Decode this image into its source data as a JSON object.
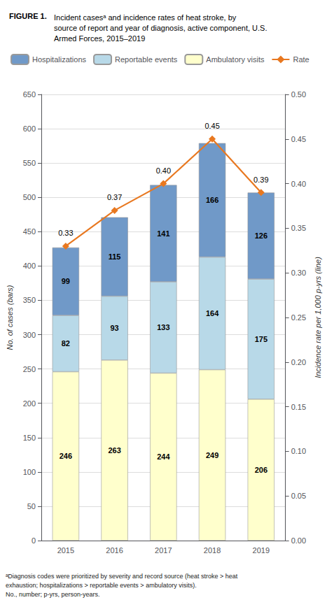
{
  "chart_data": {
    "type": "bar",
    "title": "FIGURE 1.",
    "subtitle": "Incident casesᵃ and incidence rates of heat stroke, by\nsource of report and year of diagnosis, active component, U.S.\nArmed Forces, 2015–2019",
    "annotations": [
      "ᵃDiagnosis codes were prioritized by severity and record source (heat stroke > heat\nexhaustion; hospitalizations > reportable events > ambulatory visits).\nNo., number; p-yrs, person-years."
    ],
    "categories": [
      "2015",
      "2016",
      "2017",
      "2018",
      "2019"
    ],
    "series": [
      {
        "name": "Ambulatory visits",
        "color": "#ffffcc",
        "values": [
          246,
          263,
          244,
          249,
          206
        ]
      },
      {
        "name": "Reportable events",
        "color": "#b8d9e8",
        "values": [
          82,
          93,
          133,
          164,
          175
        ]
      },
      {
        "name": "Hospitalizations",
        "color": "#7099c8",
        "values": [
          99,
          115,
          141,
          166,
          126
        ]
      },
      {
        "name": "Rate",
        "type": "line",
        "axis": "y2",
        "color": "#e87820",
        "marker": "diamond",
        "values": [
          0.33,
          0.37,
          0.4,
          0.45,
          0.39
        ],
        "value_labels": [
          "0.33",
          "0.37",
          "0.40",
          "0.45",
          "0.39"
        ]
      }
    ],
    "stacked": true,
    "data_labels": true,
    "ylabel": "No. of cases (bars)",
    "y2label": "Incidence rate per 1,000 p-yrs (line)",
    "ylim": [
      0,
      650
    ],
    "yticks": [
      0,
      50,
      100,
      150,
      200,
      250,
      300,
      350,
      400,
      450,
      500,
      550,
      600,
      650
    ],
    "y2lim": [
      0.0,
      0.5
    ],
    "y2ticks": [
      {
        "value": 0.0,
        "label": "0.00"
      },
      {
        "value": 0.05,
        "label": "0.05"
      },
      {
        "value": 0.1,
        "label": "0.10"
      },
      {
        "value": 0.15,
        "label": "0.15"
      },
      {
        "value": 0.2,
        "label": "0.20"
      },
      {
        "value": 0.25,
        "label": "0.25"
      },
      {
        "value": 0.3,
        "label": "0.30"
      },
      {
        "value": 0.35,
        "label": "0.35"
      },
      {
        "value": 0.4,
        "label": "0.40"
      },
      {
        "value": 0.45,
        "label": "0.45"
      },
      {
        "value": 0.5,
        "label": "0.50"
      }
    ],
    "grid": true,
    "legend": "upper left"
  }
}
